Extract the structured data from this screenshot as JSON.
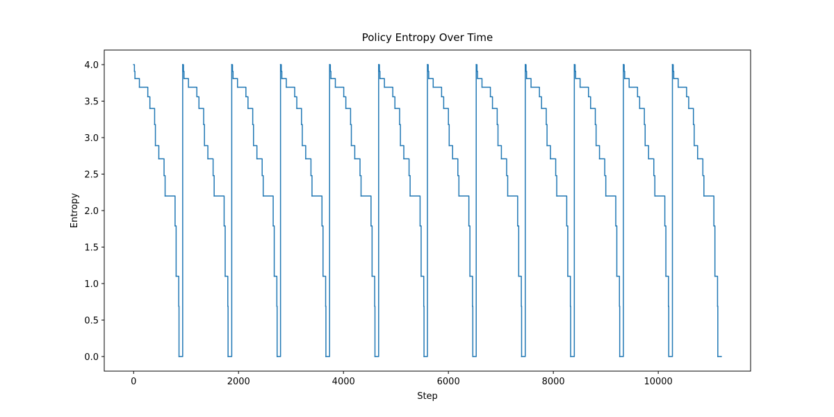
{
  "chart_data": {
    "type": "line",
    "drawstyle": "steps-post",
    "title": "Policy Entropy Over Time",
    "x_label": "Step",
    "y_label": "Entropy",
    "xlim": [
      -560,
      11760
    ],
    "ylim": [
      -0.2,
      4.2
    ],
    "xticks": [
      0,
      2000,
      4000,
      6000,
      8000,
      10000
    ],
    "yticks": [
      {
        "value": 0,
        "label": "0.0"
      },
      0.5,
      {
        "value": 1,
        "label": "1.0"
      },
      1.5,
      {
        "value": 2,
        "label": "2.0"
      },
      2.5,
      {
        "value": 3,
        "label": "3.0"
      },
      3.5,
      {
        "value": 4,
        "label": "4.0"
      }
    ],
    "grid": false,
    "x": [
      0,
      15,
      25,
      110,
      270,
      310,
      400,
      415,
      480,
      580,
      600,
      790,
      810,
      860,
      865,
      935,
      950,
      960,
      1045,
      1205,
      1245,
      1335,
      1350,
      1415,
      1515,
      1535,
      1725,
      1745,
      1795,
      1800,
      1870,
      1885,
      1895,
      1980,
      2140,
      2180,
      2270,
      2285,
      2350,
      2450,
      2470,
      2660,
      2680,
      2730,
      2735,
      2800,
      2815,
      2825,
      2910,
      3070,
      3110,
      3200,
      3215,
      3280,
      3380,
      3400,
      3590,
      3610,
      3660,
      3665,
      3735,
      3750,
      3760,
      3845,
      4005,
      4045,
      4135,
      4150,
      4215,
      4315,
      4335,
      4525,
      4545,
      4595,
      4600,
      4670,
      4685,
      4695,
      4780,
      4940,
      4980,
      5070,
      5085,
      5150,
      5250,
      5270,
      5460,
      5480,
      5530,
      5535,
      5600,
      5615,
      5625,
      5710,
      5870,
      5910,
      6000,
      6015,
      6080,
      6180,
      6200,
      6390,
      6410,
      6460,
      6465,
      6530,
      6545,
      6555,
      6640,
      6800,
      6840,
      6930,
      6945,
      7010,
      7110,
      7130,
      7320,
      7340,
      7390,
      7395,
      7465,
      7480,
      7490,
      7575,
      7735,
      7775,
      7865,
      7880,
      7945,
      8045,
      8065,
      8255,
      8275,
      8325,
      8330,
      8400,
      8415,
      8425,
      8510,
      8670,
      8710,
      8800,
      8815,
      8880,
      8980,
      9000,
      9190,
      9210,
      9260,
      9265,
      9335,
      9350,
      9360,
      9445,
      9605,
      9645,
      9735,
      9750,
      9815,
      9915,
      9935,
      10125,
      10145,
      10195,
      10200,
      10270,
      10285,
      10295,
      10380,
      10540,
      10580,
      10670,
      10685,
      10750,
      10850,
      10870,
      11060,
      11080,
      11130,
      11135,
      11200
    ],
    "series": [
      {
        "color": "#1f77b4",
        "values": [
          4.0,
          3.91,
          3.81,
          3.69,
          3.56,
          3.4,
          3.18,
          2.89,
          2.71,
          2.48,
          2.2,
          1.79,
          1.1,
          0.69,
          0,
          4.0,
          3.91,
          3.81,
          3.69,
          3.56,
          3.4,
          3.18,
          2.89,
          2.71,
          2.48,
          2.2,
          1.79,
          1.1,
          0.69,
          0,
          4.0,
          3.91,
          3.81,
          3.69,
          3.56,
          3.4,
          3.18,
          2.89,
          2.71,
          2.48,
          2.2,
          1.79,
          1.1,
          0.69,
          0,
          4.0,
          3.91,
          3.81,
          3.69,
          3.56,
          3.4,
          3.18,
          2.89,
          2.71,
          2.48,
          2.2,
          1.79,
          1.1,
          0.69,
          0,
          4.0,
          3.91,
          3.81,
          3.69,
          3.56,
          3.4,
          3.18,
          2.89,
          2.71,
          2.48,
          2.2,
          1.79,
          1.1,
          0.69,
          0,
          4.0,
          3.91,
          3.81,
          3.69,
          3.56,
          3.4,
          3.18,
          2.89,
          2.71,
          2.48,
          2.2,
          1.79,
          1.1,
          0.69,
          0,
          4.0,
          3.91,
          3.81,
          3.69,
          3.56,
          3.4,
          3.18,
          2.89,
          2.71,
          2.48,
          2.2,
          1.79,
          1.1,
          0.69,
          0,
          4.0,
          3.91,
          3.81,
          3.69,
          3.56,
          3.4,
          3.18,
          2.89,
          2.71,
          2.48,
          2.2,
          1.79,
          1.1,
          0.69,
          0,
          4.0,
          3.91,
          3.81,
          3.69,
          3.56,
          3.4,
          3.18,
          2.89,
          2.71,
          2.48,
          2.2,
          1.79,
          1.1,
          0.69,
          0,
          4.0,
          3.91,
          3.81,
          3.69,
          3.56,
          3.4,
          3.18,
          2.89,
          2.71,
          2.48,
          2.2,
          1.79,
          1.1,
          0.69,
          0,
          4.0,
          3.91,
          3.81,
          3.69,
          3.56,
          3.4,
          3.18,
          2.89,
          2.71,
          2.48,
          2.2,
          1.79,
          1.1,
          0.69,
          0,
          4.0,
          3.91,
          3.81,
          3.69,
          3.56,
          3.4,
          3.18,
          2.89,
          2.71,
          2.48,
          2.2,
          1.79,
          1.1,
          0.69,
          0,
          0
        ]
      }
    ]
  }
}
